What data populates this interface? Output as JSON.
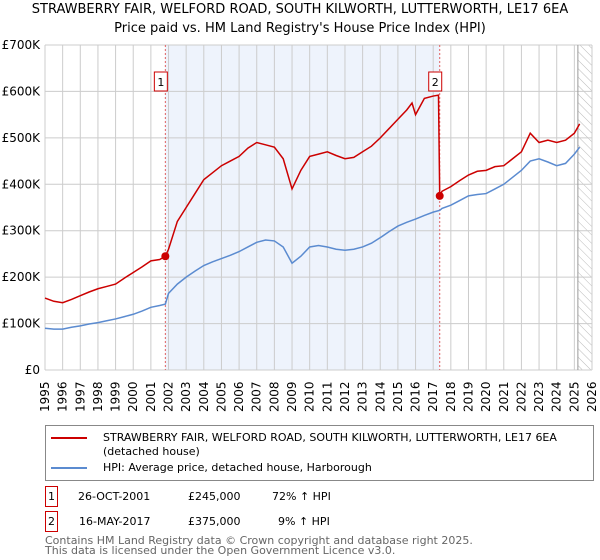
{
  "chart_data": {
    "type": "line",
    "title": "STRAWBERRY FAIR, WELFORD ROAD, SOUTH KILWORTH, LUTTERWORTH, LE17 6EA",
    "subtitle": "Price paid vs. HM Land Registry's House Price Index (HPI)",
    "xlim": [
      1995,
      2026
    ],
    "ylim": [
      0,
      700000
    ],
    "y_ticks": [
      {
        "v": 0,
        "label": "£0"
      },
      {
        "v": 100000,
        "label": "£100K"
      },
      {
        "v": 200000,
        "label": "£200K"
      },
      {
        "v": 300000,
        "label": "£300K"
      },
      {
        "v": 400000,
        "label": "£400K"
      },
      {
        "v": 500000,
        "label": "£500K"
      },
      {
        "v": 600000,
        "label": "£600K"
      },
      {
        "v": 700000,
        "label": "£700K"
      }
    ],
    "x_ticks": [
      "1995",
      "1996",
      "1997",
      "1998",
      "1999",
      "2000",
      "2001",
      "2002",
      "2003",
      "2004",
      "2005",
      "2006",
      "2007",
      "2008",
      "2009",
      "2010",
      "2011",
      "2012",
      "2013",
      "2014",
      "2015",
      "2016",
      "2017",
      "2018",
      "2019",
      "2020",
      "2021",
      "2022",
      "2023",
      "2024",
      "2025",
      "2026"
    ],
    "grid": true,
    "shaded_range": [
      2001.82,
      2017.37
    ],
    "hatched_from": 2025.2,
    "series": [
      {
        "name": "STRAWBERRY FAIR, WELFORD ROAD, SOUTH KILWORTH, LUTTERWORTH, LE17 6EA (detached house)",
        "color": "#cc0000",
        "x": [
          1995,
          1995.5,
          1996,
          1996.5,
          1997,
          1997.5,
          1998,
          1998.5,
          1999,
          1999.5,
          2000,
          2000.5,
          2001,
          2001.5,
          2001.82,
          2002,
          2002.5,
          2003,
          2003.5,
          2004,
          2004.5,
          2005,
          2005.5,
          2006,
          2006.5,
          2007,
          2007.5,
          2008,
          2008.5,
          2009,
          2009.5,
          2010,
          2010.5,
          2011,
          2011.5,
          2012,
          2012.5,
          2013,
          2013.5,
          2014,
          2014.5,
          2015,
          2015.5,
          2015.8,
          2016,
          2016.5,
          2017,
          2017.3,
          2017.37,
          2017.5,
          2018,
          2018.5,
          2019,
          2019.5,
          2020,
          2020.5,
          2021,
          2021.5,
          2022,
          2022.5,
          2023,
          2023.5,
          2024,
          2024.5,
          2025,
          2025.3
        ],
        "y": [
          155000,
          148000,
          145000,
          152000,
          160000,
          168000,
          175000,
          180000,
          185000,
          198000,
          210000,
          222000,
          235000,
          238000,
          245000,
          260000,
          320000,
          350000,
          380000,
          410000,
          425000,
          440000,
          450000,
          460000,
          478000,
          490000,
          485000,
          480000,
          455000,
          390000,
          430000,
          460000,
          465000,
          470000,
          462000,
          455000,
          458000,
          470000,
          482000,
          500000,
          520000,
          540000,
          560000,
          575000,
          550000,
          585000,
          590000,
          592000,
          375000,
          385000,
          395000,
          408000,
          420000,
          428000,
          430000,
          438000,
          440000,
          455000,
          470000,
          510000,
          490000,
          495000,
          490000,
          495000,
          510000,
          530000
        ]
      },
      {
        "name": "HPI: Average price, detached house, Harborough",
        "color": "#5b8bd0",
        "x": [
          1995,
          1995.5,
          1996,
          1996.5,
          1997,
          1997.5,
          1998,
          1998.5,
          1999,
          1999.5,
          2000,
          2000.5,
          2001,
          2001.5,
          2001.82,
          2002,
          2002.5,
          2003,
          2003.5,
          2004,
          2004.5,
          2005,
          2005.5,
          2006,
          2006.5,
          2007,
          2007.5,
          2008,
          2008.5,
          2009,
          2009.5,
          2010,
          2010.5,
          2011,
          2011.5,
          2012,
          2012.5,
          2013,
          2013.5,
          2014,
          2014.5,
          2015,
          2015.5,
          2016,
          2016.5,
          2017,
          2017.37,
          2017.5,
          2018,
          2018.5,
          2019,
          2019.5,
          2020,
          2020.5,
          2021,
          2021.5,
          2022,
          2022.5,
          2023,
          2023.5,
          2024,
          2024.5,
          2025,
          2025.3
        ],
        "y": [
          90000,
          88000,
          88000,
          92000,
          95000,
          99000,
          102000,
          106000,
          110000,
          115000,
          120000,
          127000,
          135000,
          139000,
          142000,
          165000,
          185000,
          200000,
          213000,
          225000,
          233000,
          240000,
          247000,
          255000,
          265000,
          275000,
          280000,
          278000,
          265000,
          230000,
          245000,
          265000,
          268000,
          265000,
          260000,
          258000,
          260000,
          265000,
          273000,
          285000,
          298000,
          310000,
          318000,
          325000,
          333000,
          340000,
          344000,
          348000,
          355000,
          365000,
          375000,
          378000,
          380000,
          390000,
          400000,
          415000,
          430000,
          450000,
          455000,
          448000,
          440000,
          445000,
          465000,
          480000
        ]
      }
    ],
    "annotations": [
      {
        "label": "1",
        "x": 2001.82,
        "y": 245000
      },
      {
        "label": "2",
        "x": 2017.37,
        "y": 375000
      }
    ]
  },
  "legend": {
    "red": "STRAWBERRY FAIR, WELFORD ROAD, SOUTH KILWORTH, LUTTERWORTH, LE17 6EA (detached house)",
    "blue": "HPI: Average price, detached house, Harborough"
  },
  "transactions": [
    {
      "n": "1",
      "date": "26-OCT-2001",
      "price": "£245,000",
      "hpi": "72% ↑ HPI"
    },
    {
      "n": "2",
      "date": "16-MAY-2017",
      "price": "£375,000",
      "hpi": "9% ↑ HPI"
    }
  ],
  "footer": {
    "line1": "Contains HM Land Registry data © Crown copyright and database right 2025.",
    "line2": "This data is licensed under the Open Government Licence v3.0."
  }
}
